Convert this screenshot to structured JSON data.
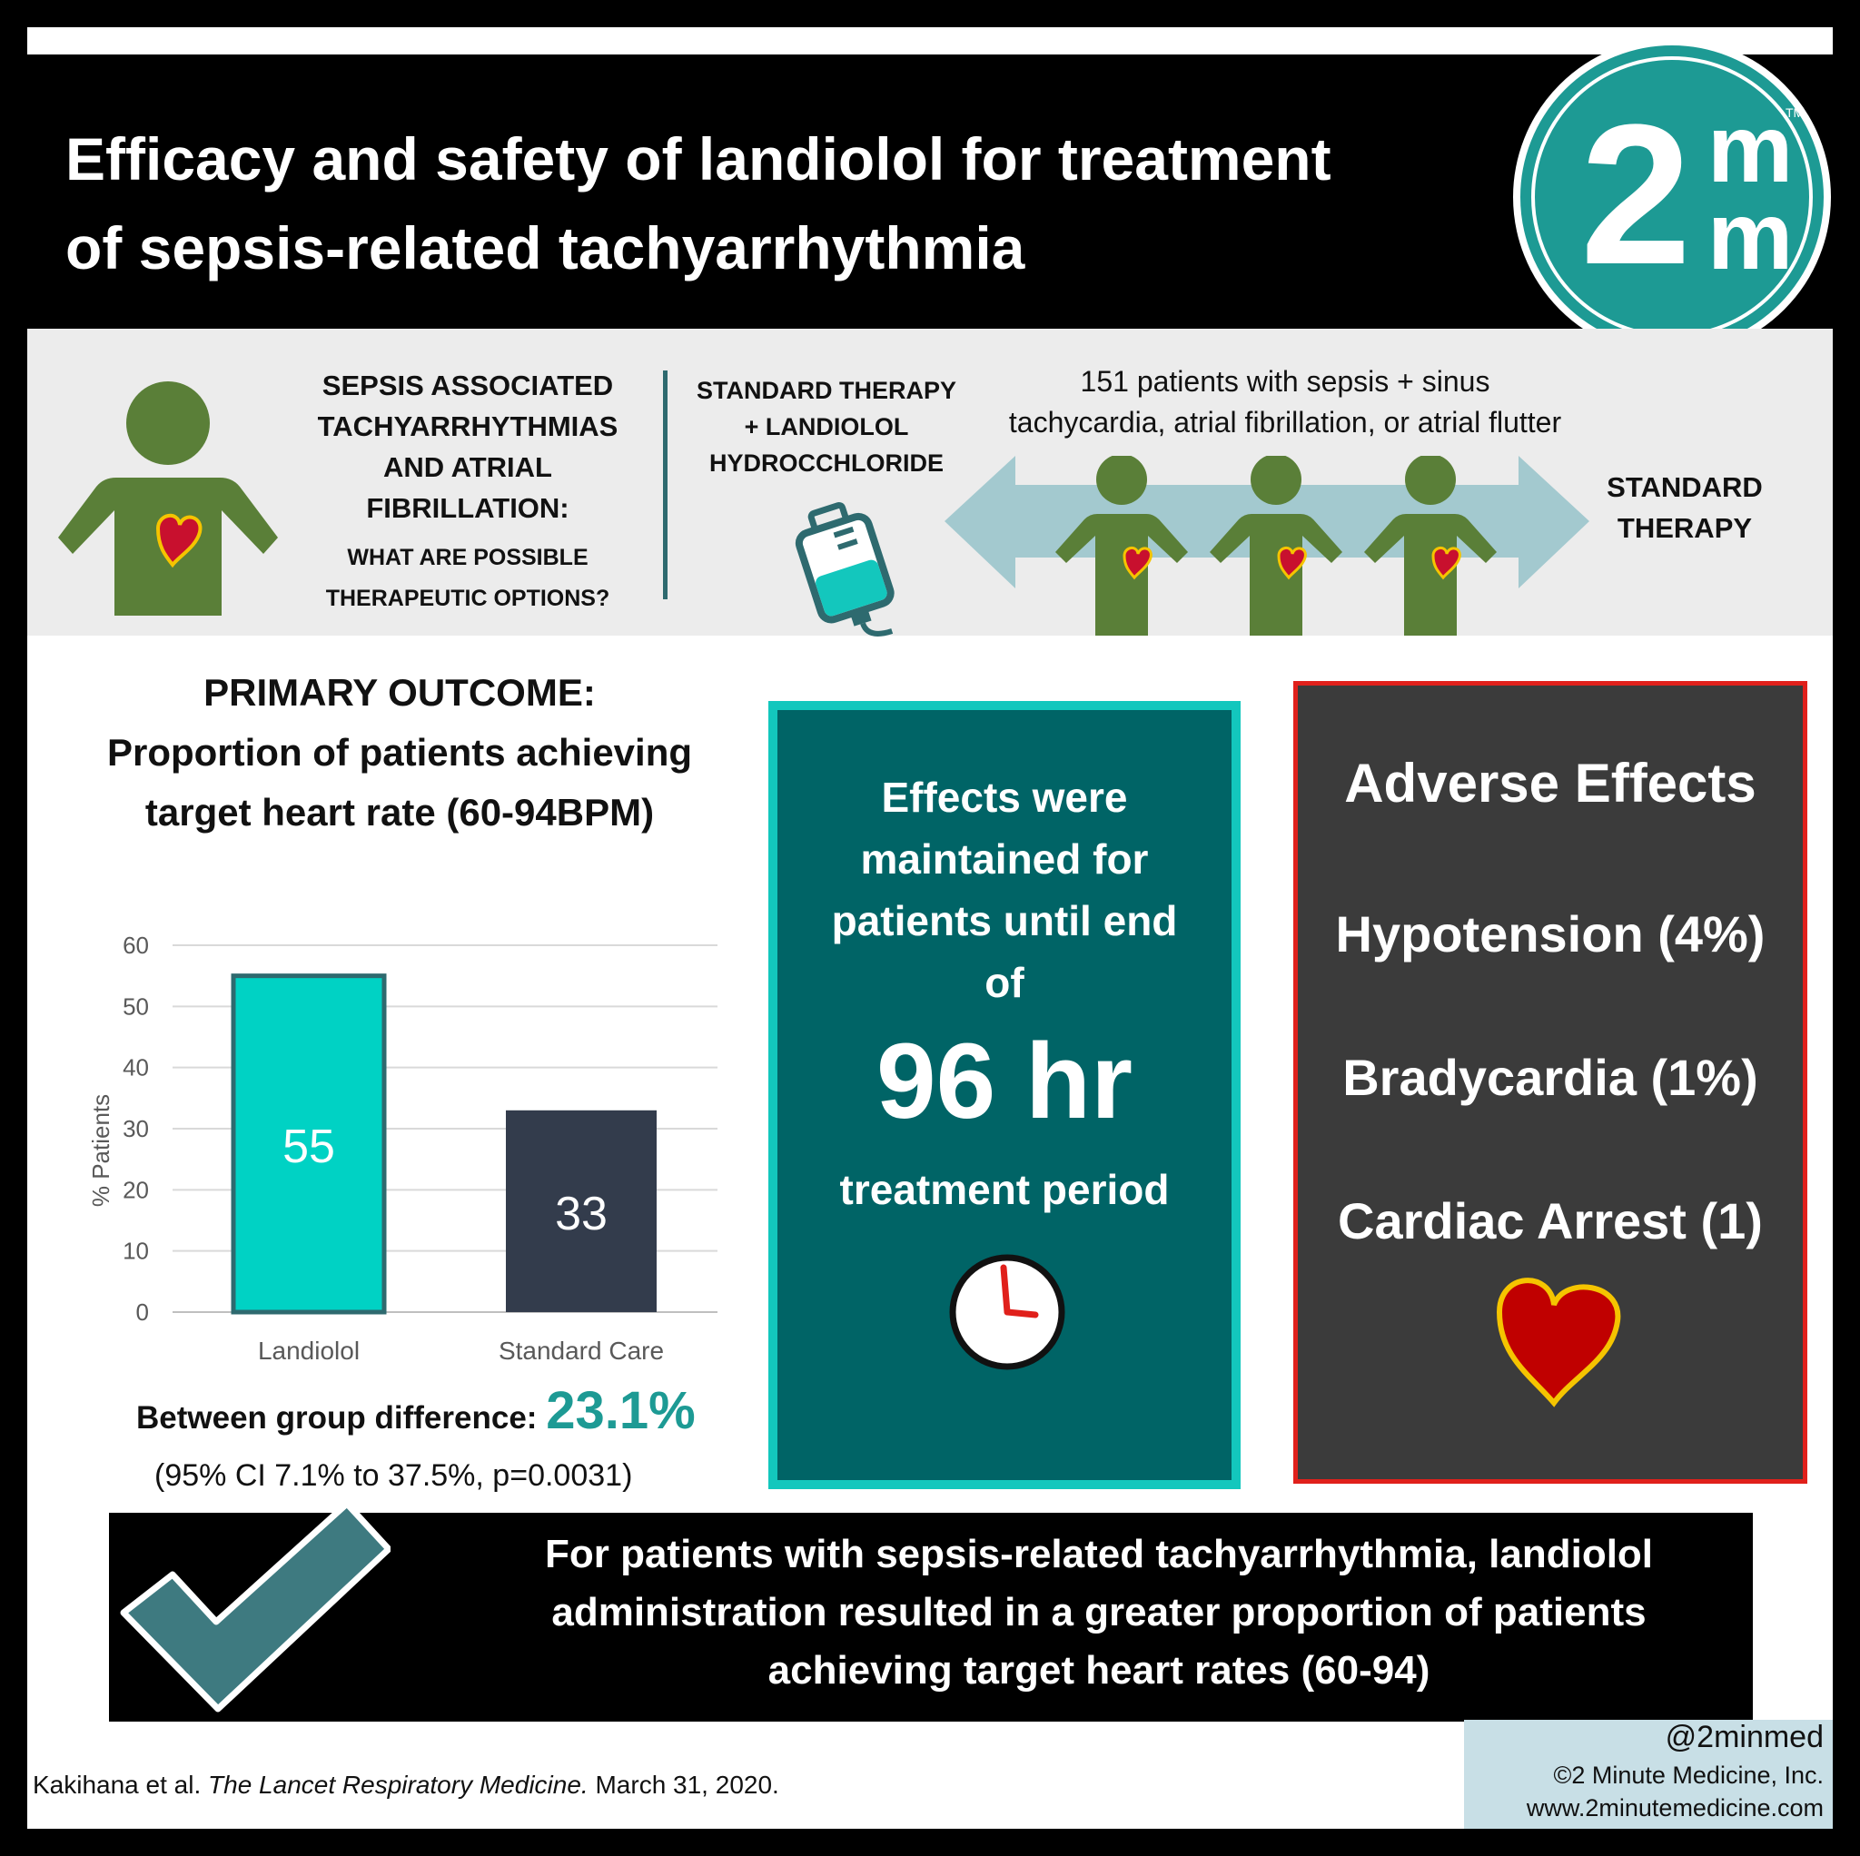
{
  "header": {
    "title_line1": "Efficacy and safety of landiolol for treatment",
    "title_line2": "of sepsis-related tachyarrhythmia",
    "logo": {
      "numeral": "2",
      "letter_top": "m",
      "letter_bottom": "m",
      "trademark": "TM"
    }
  },
  "band": {
    "sepsis_title_lines": [
      "SEPSIS ASSOCIATED",
      "TACHYARRHYTHMIAS",
      "AND ATRIAL",
      "FIBRILLATION:"
    ],
    "sepsis_sub_lines": [
      "WHAT ARE POSSIBLE",
      "THERAPEUTIC OPTIONS?"
    ],
    "std_landiolol_lines": [
      "STANDARD THERAPY",
      "+ LANDIOLOL",
      "HYDROCCHLORIDE"
    ],
    "patients_text": "151 patients with sepsis + sinus tachycardia, atrial fibrillation, or atrial flutter",
    "std_therapy_lines": [
      "STANDARD",
      "THERAPY"
    ]
  },
  "primary": {
    "title_lines": [
      "PRIMARY OUTCOME:",
      "Proportion of patients achieving",
      "target heart rate (60-94BPM)"
    ],
    "difference_label": "Between group difference:",
    "difference_value": "23.1%",
    "ci": "(95% CI 7.1% to 37.5%, p=0.0031)"
  },
  "chart_data": {
    "type": "bar",
    "categories": [
      "Landiolol",
      "Standard Care"
    ],
    "values": [
      55,
      33
    ],
    "data_labels": [
      "55",
      "33"
    ],
    "ylabel": "% Patients",
    "ylim": [
      0,
      60
    ],
    "yticks": [
      "0",
      "10",
      "20",
      "30",
      "40",
      "50",
      "60"
    ],
    "grid": true,
    "colors": [
      "#00d2c4",
      "#333c4c"
    ]
  },
  "effects": {
    "lines": [
      "Effects were",
      "maintained for",
      "patients until end",
      "of"
    ],
    "big": "96 hr",
    "period": "treatment period",
    "icon": "clock-icon"
  },
  "adverse": {
    "title": "Adverse Effects",
    "items": [
      "Hypotension (4%)",
      "Bradycardia (1%)",
      "Cardiac Arrest (1)"
    ],
    "icon": "heart-icon"
  },
  "conclusion": {
    "lines": [
      "For patients with sepsis-related tachyarrhythmia, landiolol",
      "administration resulted in a greater proportion of patients",
      "achieving target heart rates (60-94)"
    ],
    "icon": "checkmark-icon"
  },
  "footer": {
    "citation_authors": "Kakihana et al.",
    "citation_journal": "The Lancet Respiratory Medicine.",
    "citation_date": "March 31, 2020.",
    "handle": "@2minmed",
    "company": "©2 Minute Medicine, Inc.",
    "url": "www.2minutemedicine.com"
  },
  "colors": {
    "teal": "#1d9a94",
    "dark_teal": "#006466",
    "bright_teal": "#13c7bd",
    "person_green": "#5a7f38",
    "heart_red": "#c8102e",
    "heart_yellow": "#f5c400",
    "adverse_bg": "#3b3b3b",
    "adverse_border": "#e0201b",
    "arrow_blue": "#a3c9cf",
    "check_teal": "#3e7a80"
  }
}
